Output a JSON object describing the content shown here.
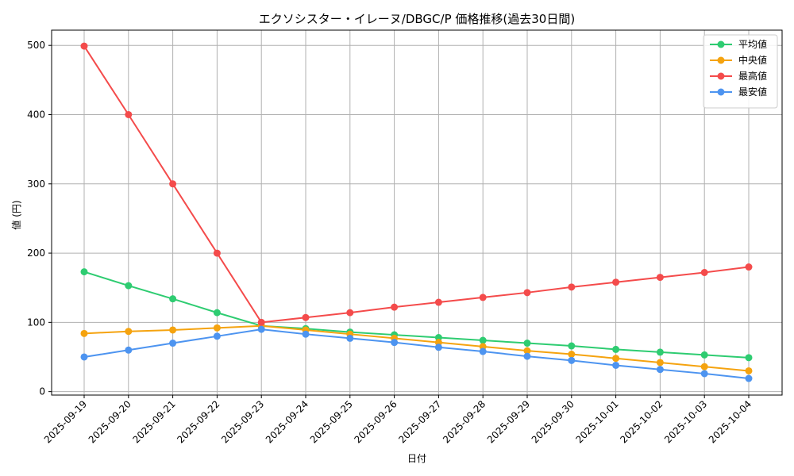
{
  "chart_data": {
    "type": "line",
    "title": "エクソシスター・イレーヌ/DBGC/P 価格推移(過去30日間)",
    "xlabel": "日付",
    "ylabel": "値 (円)",
    "ylim": [
      -5,
      522
    ],
    "yticks": [
      0,
      100,
      200,
      300,
      400,
      500
    ],
    "grid": true,
    "legend_position": "top-right",
    "categories": [
      "2025-09-19",
      "2025-09-20",
      "2025-09-21",
      "2025-09-22",
      "2025-09-23",
      "2025-09-24",
      "2025-09-25",
      "2025-09-26",
      "2025-09-27",
      "2025-09-28",
      "2025-09-29",
      "2025-09-30",
      "2025-10-01",
      "2025-10-02",
      "2025-10-03",
      "2025-10-04"
    ],
    "series": [
      {
        "name": "平均値",
        "color": "#2ecc71",
        "values": [
          173,
          153,
          134,
          114,
          95,
          91,
          86,
          82,
          78,
          74,
          70,
          66,
          61,
          57,
          53,
          49
        ]
      },
      {
        "name": " 中央値",
        "color": "#f5a30f",
        "values": [
          84,
          87,
          89,
          92,
          95,
          89,
          83,
          77,
          71,
          65,
          59,
          54,
          48,
          42,
          36,
          30
        ]
      },
      {
        "name": "最高値",
        "color": "#f44b4b",
        "values": [
          499,
          400,
          300,
          200,
          100,
          107,
          114,
          122,
          129,
          136,
          143,
          151,
          158,
          165,
          172,
          180
        ]
      },
      {
        "name": "最安値",
        "color": "#4d94f0",
        "values": [
          50,
          60,
          70,
          80,
          90,
          83,
          77,
          71,
          64,
          58,
          51,
          45,
          38,
          32,
          26,
          19
        ]
      }
    ]
  }
}
